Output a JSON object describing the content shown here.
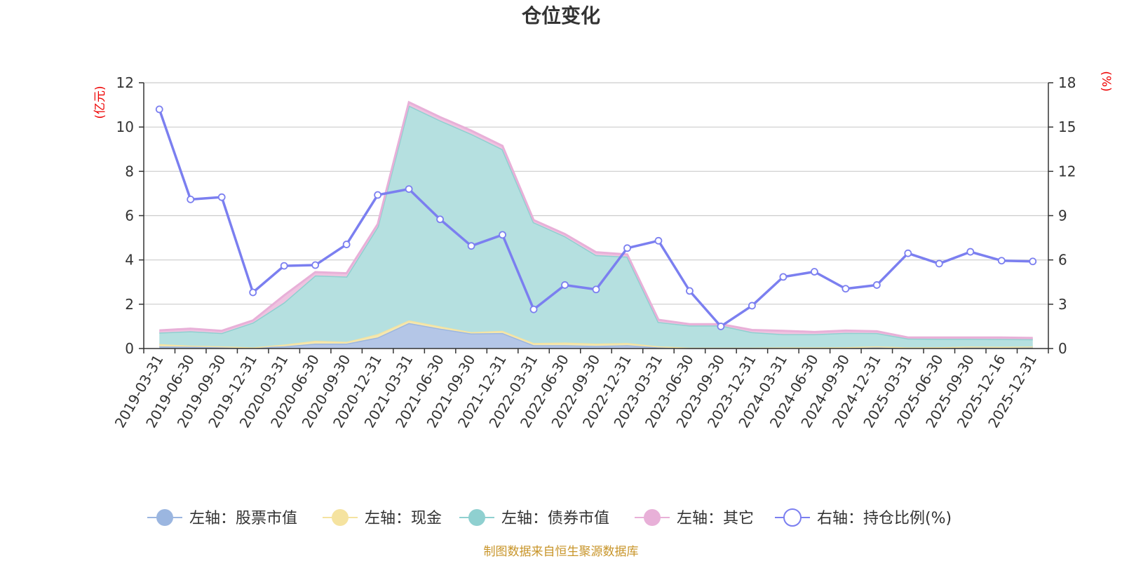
{
  "title": "仓位变化",
  "footer": "制图数据来自恒生聚源数据库",
  "chart_data": {
    "type": "area",
    "title": "仓位变化",
    "left_axis": {
      "unit": "(亿元)",
      "ticks": [
        "0",
        "2",
        "4",
        "6",
        "8",
        "10",
        "12"
      ],
      "range": [
        0,
        12
      ]
    },
    "right_axis": {
      "unit": "(%)",
      "ticks": [
        "0",
        "3",
        "6",
        "9",
        "12",
        "15",
        "18"
      ],
      "range": [
        0,
        18
      ]
    },
    "grid": true,
    "legend_position": "bottom",
    "categories": [
      "2019-03-31",
      "2019-06-30",
      "2019-09-30",
      "2019-12-31",
      "2020-03-31",
      "2020-06-30",
      "2020-09-30",
      "2020-12-31",
      "2021-03-31",
      "2021-06-30",
      "2021-09-30",
      "2021-12-31",
      "2022-03-31",
      "2022-06-30",
      "2022-09-30",
      "2022-12-31",
      "2023-03-31",
      "2023-06-30",
      "2023-09-30",
      "2023-12-31",
      "2024-03-31",
      "2024-06-30",
      "2024-09-30",
      "2024-12-31",
      "2025-03-31",
      "2025-06-30",
      "2025-09-30",
      "2025-12-16",
      "2025-12-31"
    ],
    "series": [
      {
        "name": "左轴：股票市值",
        "axis": "left",
        "stack": true,
        "color": "#9bb6e0",
        "fill": "#b4c6e7",
        "values": [
          0.1,
          0.08,
          0.07,
          0.05,
          0.1,
          0.22,
          0.22,
          0.5,
          1.15,
          0.9,
          0.68,
          0.7,
          0.15,
          0.15,
          0.12,
          0.15,
          0.05,
          0.02,
          0.02,
          0.02,
          0.03,
          0.03,
          0.03,
          0.05,
          0.03,
          0.04,
          0.05,
          0.04,
          0.05
        ]
      },
      {
        "name": "左轴：现金",
        "axis": "left",
        "stack": true,
        "color": "#f5e3a0",
        "fill": "#f5e7b0",
        "values": [
          0.1,
          0.05,
          0.03,
          0.0,
          0.08,
          0.13,
          0.08,
          0.15,
          0.12,
          0.1,
          0.06,
          0.1,
          0.1,
          0.12,
          0.1,
          0.1,
          0.05,
          0.02,
          0.02,
          0.02,
          0.02,
          0.02,
          0.03,
          0.05,
          0.02,
          0.02,
          0.04,
          0.04,
          0.04
        ]
      },
      {
        "name": "左轴：债券市值",
        "axis": "left",
        "stack": true,
        "color": "#8fd0d0",
        "fill": "#b5e0e0",
        "values": [
          0.52,
          0.65,
          0.6,
          1.12,
          1.9,
          2.95,
          2.95,
          4.85,
          9.7,
          9.3,
          8.95,
          8.2,
          5.45,
          4.8,
          4.0,
          3.9,
          1.1,
          1.0,
          1.0,
          0.7,
          0.6,
          0.6,
          0.65,
          0.6,
          0.4,
          0.38,
          0.35,
          0.35,
          0.33
        ]
      },
      {
        "name": "左轴：其它",
        "axis": "left",
        "stack": true,
        "color": "#e8b0d8",
        "fill": "#efc3e0",
        "values": [
          0.1,
          0.12,
          0.1,
          0.1,
          0.32,
          0.15,
          0.15,
          0.12,
          0.15,
          0.15,
          0.15,
          0.15,
          0.1,
          0.1,
          0.13,
          0.1,
          0.1,
          0.06,
          0.06,
          0.1,
          0.15,
          0.1,
          0.1,
          0.08,
          0.05,
          0.06,
          0.06,
          0.07,
          0.06
        ]
      },
      {
        "name": "右轴：持仓比例(%)",
        "axis": "right",
        "type": "line",
        "color": "#7b7ff0",
        "values": [
          16.2,
          10.1,
          10.25,
          3.8,
          5.6,
          5.65,
          7.05,
          10.4,
          10.8,
          8.75,
          6.95,
          7.7,
          2.65,
          4.3,
          4.0,
          6.8,
          7.3,
          3.9,
          1.5,
          2.9,
          4.85,
          5.2,
          4.05,
          4.3,
          6.45,
          5.75,
          6.55,
          5.95,
          5.9
        ]
      }
    ]
  }
}
